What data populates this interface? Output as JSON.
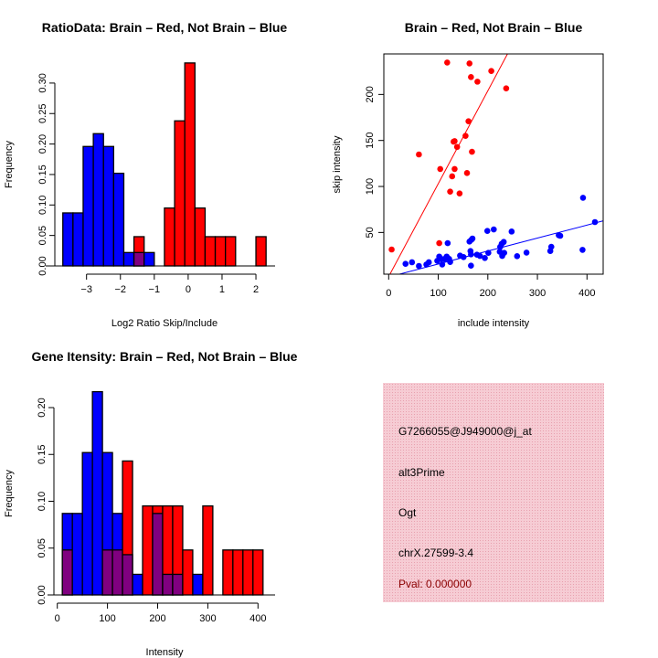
{
  "colors": {
    "brain": "#ff0000",
    "not_brain": "#0000ff",
    "overlap": "#800080",
    "panel_bg": "#f4c2cc",
    "pval": "#8b0000"
  },
  "chart_data": [
    {
      "type": "bar",
      "title": "RatioData: Brain – Red, Not Brain – Blue",
      "xlabel": "Log2 Ratio Skip/Include",
      "ylabel": "Frequency",
      "xticks": [
        "-3",
        "-2",
        "-1",
        "0",
        "1",
        "2"
      ],
      "yticks": [
        "0.00",
        "0.05",
        "0.10",
        "0.15",
        "0.20",
        "0.25",
        "0.30"
      ],
      "bin_start": -3.7,
      "bin_width": 0.3,
      "series": [
        {
          "name": "Not Brain",
          "color": "#0000ff",
          "values": [
            0.087,
            0.087,
            0.196,
            0.217,
            0.196,
            0.152,
            0.022,
            0.022,
            0.022,
            0,
            0,
            0,
            0,
            0,
            0,
            0,
            0,
            0,
            0,
            0
          ]
        },
        {
          "name": "Brain",
          "color": "#ff0000",
          "values": [
            0,
            0,
            0,
            0,
            0,
            0,
            0,
            0.048,
            0,
            0,
            0.095,
            0.238,
            0.333,
            0.095,
            0.048,
            0.048,
            0.048,
            0,
            0,
            0.048
          ]
        }
      ]
    },
    {
      "type": "scatter",
      "title": "Brain – Red, Not Brain – Blue",
      "xlabel": "include intensity",
      "ylabel": "skip intensity",
      "xticks": [
        "0",
        "100",
        "200",
        "300",
        "400"
      ],
      "yticks": [
        "50",
        "100",
        "150",
        "200"
      ],
      "xlim": [
        -10,
        432
      ],
      "ylim": [
        4,
        244
      ],
      "series": [
        {
          "name": "Brain",
          "color": "#ff0000",
          "fit": {
            "slope": 1.01,
            "intercept": 2
          },
          "points": [
            [
              118,
              234.7
            ],
            [
              163,
              233.7
            ],
            [
              166,
              218.9
            ],
            [
              179,
              213.9
            ],
            [
              207,
              225.5
            ],
            [
              237,
              206.6
            ],
            [
              161,
              170.9
            ],
            [
              155,
              155
            ],
            [
              131,
              148.7
            ],
            [
              133,
              149.3
            ],
            [
              138,
              143
            ],
            [
              61,
              134.8
            ],
            [
              168,
              137.7
            ],
            [
              104,
              119
            ],
            [
              133,
              119
            ],
            [
              128,
              111
            ],
            [
              158,
              114.6
            ],
            [
              124,
              94.4
            ],
            [
              143,
              92.4
            ],
            [
              102,
              38.4
            ],
            [
              6,
              31.5
            ]
          ]
        },
        {
          "name": "Not Brain",
          "color": "#0000ff",
          "fit": {
            "slope": 0.141,
            "intercept": 1.6
          },
          "points": [
            [
              34,
              15.9
            ],
            [
              47,
              17.6
            ],
            [
              61,
              13.6
            ],
            [
              76,
              15.2
            ],
            [
              81,
              17.6
            ],
            [
              98,
              19.2
            ],
            [
              102,
              23.8
            ],
            [
              106,
              21.2
            ],
            [
              108,
              15.2
            ],
            [
              113,
              21.2
            ],
            [
              117,
              23.8
            ],
            [
              119,
              38.4
            ],
            [
              122,
              21.2
            ],
            [
              124,
              17.9
            ],
            [
              144,
              24.8
            ],
            [
              151,
              23.2
            ],
            [
              163,
              40.1
            ],
            [
              167,
              42.1
            ],
            [
              169,
              43.4
            ],
            [
              165,
              29.8
            ],
            [
              166,
              26.2
            ],
            [
              166,
              13.9
            ],
            [
              178,
              25.8
            ],
            [
              184,
              24.5
            ],
            [
              194,
              22.2
            ],
            [
              201,
              27.8
            ],
            [
              199,
              51.7
            ],
            [
              212,
              53.3
            ],
            [
              224,
              29.1
            ],
            [
              225,
              34.4
            ],
            [
              228,
              37.7
            ],
            [
              229,
              24.5
            ],
            [
              232,
              39.7
            ],
            [
              233,
              27.8
            ],
            [
              248,
              51
            ],
            [
              259,
              24.2
            ],
            [
              278,
              28.1
            ],
            [
              326,
              29.8
            ],
            [
              328,
              34.4
            ],
            [
              343,
              47
            ],
            [
              346,
              46.4
            ],
            [
              391,
              31.1
            ],
            [
              392,
              87.7
            ],
            [
              416,
              61.3
            ]
          ]
        }
      ]
    },
    {
      "type": "bar",
      "title": "Gene Itensity: Brain – Red, Not Brain – Blue",
      "xlabel": "Intensity",
      "ylabel": "Frequency",
      "xticks": [
        "0",
        "100",
        "200",
        "300",
        "400"
      ],
      "yticks": [
        "0.00",
        "0.05",
        "0.10",
        "0.15",
        "0.20"
      ],
      "bin_start": 10,
      "bin_width": 20,
      "series": [
        {
          "name": "Not Brain",
          "color": "#0000ff",
          "values": [
            0.087,
            0.087,
            0.152,
            0.217,
            0.152,
            0.087,
            0.043,
            0.022,
            0,
            0.087,
            0.022,
            0.022,
            0,
            0.022,
            0,
            0,
            0,
            0,
            0,
            0
          ]
        },
        {
          "name": "Brain",
          "color": "#ff0000",
          "values": [
            0.048,
            0,
            0,
            0,
            0.048,
            0.048,
            0.143,
            0,
            0.095,
            0.095,
            0.095,
            0.095,
            0.048,
            0,
            0.095,
            0,
            0.048,
            0.048,
            0.048,
            0.048
          ]
        }
      ]
    }
  ],
  "info_panel": {
    "probe_id": "G7266055@J949000@j_at",
    "event_type": "alt3Prime",
    "gene": "Ogt",
    "location": "chrX.27599-3.4",
    "pval": "Pval: 0.000000"
  }
}
